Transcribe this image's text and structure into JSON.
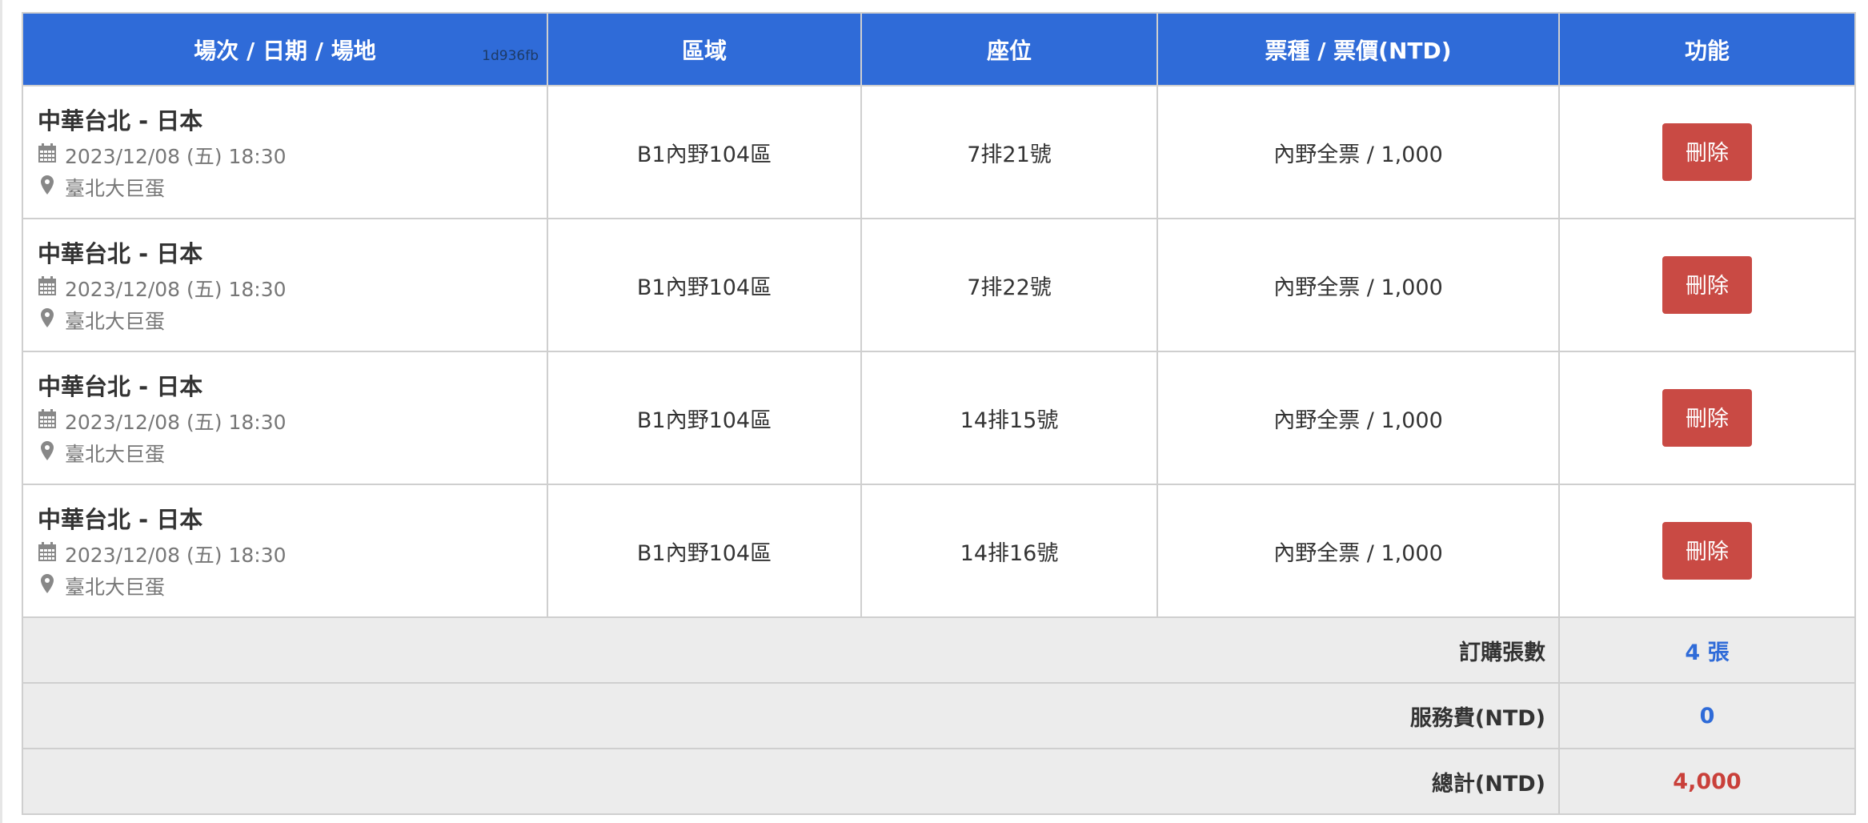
{
  "header": {
    "columns": [
      "場次 / 日期 / 場地",
      "區域",
      "座位",
      "票種 / 票價(NTD)",
      "功能"
    ],
    "hash": "1d936fb"
  },
  "rows": [
    {
      "title": "中華台北 - 日本",
      "date": "2023/12/08 (五) 18:30",
      "venue": "臺北大巨蛋",
      "area": "B1內野104區",
      "seat": "7排21號",
      "ticket": "內野全票 / 1,000",
      "action": "刪除"
    },
    {
      "title": "中華台北 - 日本",
      "date": "2023/12/08 (五) 18:30",
      "venue": "臺北大巨蛋",
      "area": "B1內野104區",
      "seat": "7排22號",
      "ticket": "內野全票 / 1,000",
      "action": "刪除"
    },
    {
      "title": "中華台北 - 日本",
      "date": "2023/12/08 (五) 18:30",
      "venue": "臺北大巨蛋",
      "area": "B1內野104區",
      "seat": "14排15號",
      "ticket": "內野全票 / 1,000",
      "action": "刪除"
    },
    {
      "title": "中華台北 - 日本",
      "date": "2023/12/08 (五) 18:30",
      "venue": "臺北大巨蛋",
      "area": "B1內野104區",
      "seat": "14排16號",
      "ticket": "內野全票 / 1,000",
      "action": "刪除"
    }
  ],
  "summary": [
    {
      "label": "訂購張數",
      "value": "4 張",
      "color": "#2f6bd8"
    },
    {
      "label": "服務費(NTD)",
      "value": "0",
      "color": "#2f6bd8"
    },
    {
      "label": "總計(NTD)",
      "value": "4,000",
      "color": "#c9403a"
    }
  ],
  "colors": {
    "header": "#2f6bd8",
    "delete": "#c94a44"
  },
  "icons": {
    "date": "calendar-icon",
    "venue": "map-marker-icon"
  }
}
